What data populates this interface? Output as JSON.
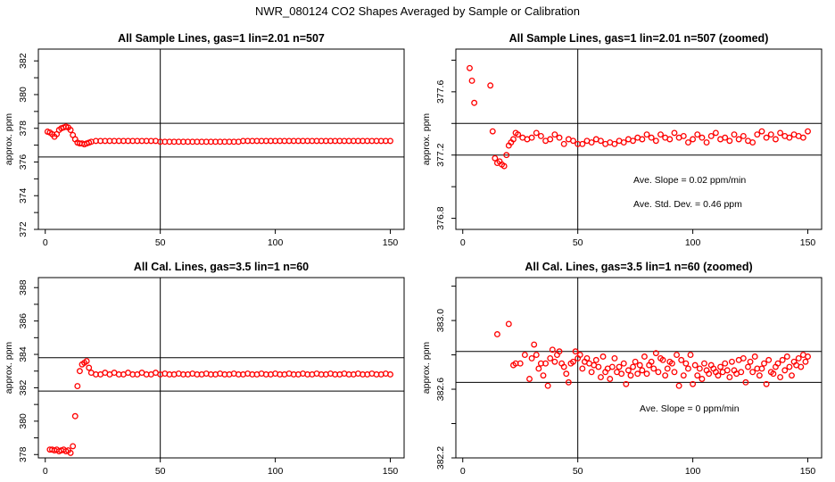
{
  "page": {
    "title": "NWR_080124  CO2 Shapes Averaged by Sample or Calibration"
  },
  "chart_data": [
    {
      "type": "scatter",
      "title": "All Sample Lines, gas=1 lin=2.01 n=507",
      "xlabel": "",
      "ylabel": "approx. ppm",
      "xlim": [
        -3,
        156
      ],
      "ylim": [
        372,
        382.7
      ],
      "xticks": [
        "0",
        "50",
        "100",
        "150"
      ],
      "yticks": [
        "372",
        "374",
        "376",
        "378",
        "380",
        "382"
      ],
      "color": "#ff0000",
      "hlines": [
        378.3,
        376.3
      ],
      "vline": 50,
      "x": [
        1,
        2,
        3,
        4,
        5,
        6,
        7,
        8,
        9,
        10,
        11,
        12,
        13,
        14,
        15,
        16,
        17,
        18,
        19,
        20,
        22,
        24,
        26,
        28,
        30,
        32,
        34,
        36,
        38,
        40,
        42,
        44,
        46,
        48,
        50,
        52,
        54,
        56,
        58,
        60,
        62,
        64,
        66,
        68,
        70,
        72,
        74,
        76,
        78,
        80,
        82,
        84,
        86,
        88,
        90,
        92,
        94,
        96,
        98,
        100,
        102,
        104,
        106,
        108,
        110,
        112,
        114,
        116,
        118,
        120,
        122,
        124,
        126,
        128,
        130,
        132,
        134,
        136,
        138,
        140,
        142,
        144,
        146,
        148,
        150
      ],
      "y": [
        377.8,
        377.75,
        377.65,
        377.5,
        377.65,
        377.9,
        378.0,
        378.05,
        378.1,
        378.05,
        377.9,
        377.6,
        377.35,
        377.15,
        377.1,
        377.1,
        377.05,
        377.1,
        377.15,
        377.2,
        377.25,
        377.25,
        377.25,
        377.25,
        377.25,
        377.25,
        377.25,
        377.25,
        377.25,
        377.25,
        377.25,
        377.25,
        377.25,
        377.25,
        377.2,
        377.2,
        377.2,
        377.2,
        377.2,
        377.2,
        377.2,
        377.2,
        377.2,
        377.2,
        377.2,
        377.2,
        377.2,
        377.2,
        377.2,
        377.2,
        377.2,
        377.2,
        377.25,
        377.25,
        377.25,
        377.25,
        377.25,
        377.25,
        377.25,
        377.25,
        377.25,
        377.25,
        377.25,
        377.25,
        377.25,
        377.25,
        377.25,
        377.25,
        377.25,
        377.25,
        377.25,
        377.25,
        377.25,
        377.25,
        377.25,
        377.25,
        377.25,
        377.25,
        377.25,
        377.25,
        377.25,
        377.25,
        377.25,
        377.25,
        377.25
      ],
      "annotations": []
    },
    {
      "type": "scatter",
      "title": "All Sample Lines, gas=1 lin=2.01 n=507 (zoomed)",
      "xlabel": "",
      "ylabel": "approx. ppm",
      "xlim": [
        -3,
        156
      ],
      "ylim": [
        376.73,
        377.87
      ],
      "xticks": [
        "0",
        "50",
        "100",
        "150"
      ],
      "yticks": [
        "376.8",
        "377.2",
        "377.6"
      ],
      "color": "#ff0000",
      "hlines": [
        377.4,
        377.2
      ],
      "vline": 50,
      "x": [
        3,
        4,
        5,
        12,
        13,
        14,
        15,
        16,
        17,
        18,
        19,
        20,
        21,
        22,
        23,
        24,
        26,
        28,
        30,
        32,
        34,
        36,
        38,
        40,
        42,
        44,
        46,
        48,
        50,
        52,
        54,
        56,
        58,
        60,
        62,
        64,
        66,
        68,
        70,
        72,
        74,
        76,
        78,
        80,
        82,
        84,
        86,
        88,
        90,
        92,
        94,
        96,
        98,
        100,
        102,
        104,
        106,
        108,
        110,
        112,
        114,
        116,
        118,
        120,
        122,
        124,
        126,
        128,
        130,
        132,
        134,
        136,
        138,
        140,
        142,
        144,
        146,
        148,
        150
      ],
      "y": [
        377.75,
        377.67,
        377.53,
        377.64,
        377.35,
        377.18,
        377.15,
        377.16,
        377.14,
        377.13,
        377.2,
        377.26,
        377.28,
        377.3,
        377.34,
        377.33,
        377.31,
        377.3,
        377.31,
        377.34,
        377.32,
        377.29,
        377.3,
        377.33,
        377.31,
        377.27,
        377.3,
        377.29,
        377.27,
        377.27,
        377.29,
        377.28,
        377.3,
        377.29,
        377.27,
        377.28,
        377.27,
        377.29,
        377.28,
        377.3,
        377.29,
        377.31,
        377.3,
        377.33,
        377.31,
        377.29,
        377.33,
        377.31,
        377.3,
        377.34,
        377.31,
        377.32,
        377.28,
        377.3,
        377.33,
        377.31,
        377.28,
        377.32,
        377.34,
        377.3,
        377.31,
        377.29,
        377.33,
        377.3,
        377.32,
        377.29,
        377.28,
        377.33,
        377.35,
        377.31,
        377.33,
        377.3,
        377.34,
        377.32,
        377.31,
        377.33,
        377.32,
        377.31,
        377.35
      ],
      "annotations": [
        "Ave. Slope =  0.02  ppm/min",
        "Ave. Std. Dev. =  0.46  ppm"
      ]
    },
    {
      "type": "scatter",
      "title": "All Cal. Lines, gas=3.5 lin=1 n=60",
      "xlabel": "",
      "ylabel": "approx. ppm",
      "xlim": [
        -3,
        156
      ],
      "ylim": [
        377.8,
        388.6
      ],
      "xticks": [
        "0",
        "50",
        "100",
        "150"
      ],
      "yticks": [
        "378",
        "380",
        "382",
        "384",
        "386",
        "388"
      ],
      "color": "#ff0000",
      "hlines": [
        383.8,
        381.8
      ],
      "vline": 50,
      "x": [
        2,
        3,
        4,
        5,
        6,
        7,
        8,
        9,
        10,
        11,
        12,
        13,
        14,
        15,
        16,
        17,
        18,
        19,
        20,
        22,
        24,
        26,
        28,
        30,
        32,
        34,
        36,
        38,
        40,
        42,
        44,
        46,
        48,
        50,
        52,
        54,
        56,
        58,
        60,
        62,
        64,
        66,
        68,
        70,
        72,
        74,
        76,
        78,
        80,
        82,
        84,
        86,
        88,
        90,
        92,
        94,
        96,
        98,
        100,
        102,
        104,
        106,
        108,
        110,
        112,
        114,
        116,
        118,
        120,
        122,
        124,
        126,
        128,
        130,
        132,
        134,
        136,
        138,
        140,
        142,
        144,
        146,
        148,
        150
      ],
      "y": [
        378.3,
        378.3,
        378.25,
        378.3,
        378.2,
        378.25,
        378.3,
        378.2,
        378.25,
        378.1,
        378.5,
        380.3,
        382.1,
        383.0,
        383.4,
        383.5,
        383.6,
        383.2,
        382.9,
        382.8,
        382.8,
        382.9,
        382.8,
        382.9,
        382.8,
        382.8,
        382.9,
        382.8,
        382.8,
        382.9,
        382.8,
        382.8,
        382.9,
        382.8,
        382.85,
        382.8,
        382.8,
        382.85,
        382.8,
        382.8,
        382.85,
        382.8,
        382.8,
        382.85,
        382.8,
        382.8,
        382.85,
        382.8,
        382.8,
        382.85,
        382.8,
        382.8,
        382.85,
        382.8,
        382.8,
        382.85,
        382.8,
        382.8,
        382.85,
        382.8,
        382.8,
        382.85,
        382.8,
        382.8,
        382.85,
        382.8,
        382.8,
        382.85,
        382.8,
        382.8,
        382.85,
        382.8,
        382.8,
        382.85,
        382.8,
        382.8,
        382.85,
        382.8,
        382.8,
        382.85,
        382.8,
        382.8,
        382.85,
        382.8
      ],
      "annotations": []
    },
    {
      "type": "scatter",
      "title": "All Cal. Lines, gas=3.5 lin=1 n=60 (zoomed)",
      "xlabel": "",
      "ylabel": "approx. ppm",
      "xlim": [
        -3,
        156
      ],
      "ylim": [
        382.2,
        383.25
      ],
      "xticks": [
        "0",
        "50",
        "100",
        "150"
      ],
      "yticks": [
        "382.2",
        "382.6",
        "383.0"
      ],
      "color": "#ff0000",
      "hlines": [
        382.82,
        382.64
      ],
      "vline": 50,
      "x": [
        15,
        20,
        22,
        23,
        25,
        27,
        29,
        30,
        31,
        32,
        33,
        34,
        35,
        36,
        37,
        38,
        39,
        40,
        41,
        42,
        43,
        44,
        45,
        46,
        47,
        48,
        49,
        50,
        51,
        52,
        53,
        54,
        55,
        56,
        57,
        58,
        59,
        60,
        61,
        62,
        63,
        64,
        65,
        66,
        67,
        68,
        69,
        70,
        71,
        72,
        73,
        74,
        75,
        76,
        77,
        78,
        79,
        80,
        81,
        82,
        83,
        84,
        85,
        86,
        87,
        88,
        89,
        90,
        91,
        92,
        93,
        94,
        95,
        96,
        97,
        98,
        99,
        100,
        101,
        102,
        103,
        104,
        105,
        106,
        107,
        108,
        109,
        110,
        111,
        112,
        113,
        114,
        115,
        116,
        117,
        118,
        119,
        120,
        121,
        122,
        123,
        124,
        125,
        126,
        127,
        128,
        129,
        130,
        131,
        132,
        133,
        134,
        135,
        136,
        137,
        138,
        139,
        140,
        141,
        142,
        143,
        144,
        145,
        146,
        147,
        148,
        149,
        150
      ],
      "y": [
        382.92,
        382.98,
        382.74,
        382.75,
        382.75,
        382.8,
        382.66,
        382.78,
        382.86,
        382.8,
        382.72,
        382.75,
        382.68,
        382.75,
        382.62,
        382.78,
        382.83,
        382.76,
        382.8,
        382.82,
        382.75,
        382.73,
        382.69,
        382.64,
        382.75,
        382.76,
        382.82,
        382.78,
        382.8,
        382.72,
        382.76,
        382.78,
        382.75,
        382.7,
        382.74,
        382.77,
        382.73,
        382.67,
        382.79,
        382.7,
        382.72,
        382.66,
        382.73,
        382.78,
        382.7,
        382.73,
        382.69,
        382.75,
        382.63,
        382.71,
        382.68,
        382.73,
        382.76,
        382.69,
        382.74,
        382.71,
        382.79,
        382.69,
        382.74,
        382.76,
        382.72,
        382.81,
        382.7,
        382.78,
        382.77,
        382.68,
        382.72,
        382.76,
        382.75,
        382.7,
        382.8,
        382.62,
        382.77,
        382.68,
        382.75,
        382.72,
        382.8,
        382.63,
        382.74,
        382.68,
        382.72,
        382.66,
        382.75,
        382.71,
        382.69,
        382.74,
        382.72,
        382.7,
        382.68,
        382.73,
        382.7,
        382.75,
        382.71,
        382.67,
        382.76,
        382.71,
        382.69,
        382.77,
        382.7,
        382.78,
        382.64,
        382.73,
        382.76,
        382.7,
        382.79,
        382.72,
        382.68,
        382.72,
        382.75,
        382.63,
        382.77,
        382.7,
        382.69,
        382.73,
        382.75,
        382.67,
        382.77,
        382.71,
        382.79,
        382.73,
        382.68,
        382.76,
        382.74,
        382.78,
        382.73,
        382.8,
        382.76,
        382.79
      ],
      "annotations": [
        "Ave. Slope =  0  ppm/min"
      ]
    }
  ]
}
